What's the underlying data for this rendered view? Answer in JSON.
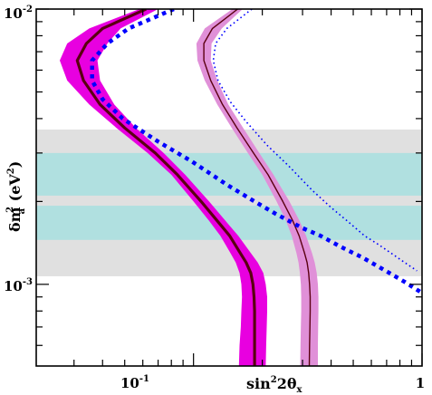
{
  "chart_data": {
    "type": "line",
    "title": "",
    "x_scale": "log",
    "y_scale": "log",
    "xlim": [
      0.0205,
      1.0
    ],
    "ylim": [
      0.000505,
      0.01
    ],
    "x_ticks": [
      {
        "value": 0.1,
        "base": "10",
        "exp": "-1"
      },
      {
        "value": 1,
        "base": "1",
        "exp": ""
      }
    ],
    "y_ticks": [
      {
        "value": 0.01,
        "base": "10",
        "exp": "-2"
      },
      {
        "value": 0.001,
        "base": "10",
        "exp": "-3"
      }
    ],
    "xlabel": {
      "main": "sin",
      "sup": "2",
      "mid": "2θ",
      "sub": "x"
    },
    "ylabel": {
      "main": "δm",
      "sub": "a",
      "sup": "2",
      "unit_open": " (eV",
      "unit_sup": "2",
      "unit_close": ")"
    },
    "bands": [
      {
        "name": "gray-outer",
        "y_range": [
          0.00107,
          0.00365
        ],
        "color": "#e0e0e0"
      },
      {
        "name": "cyan-upper",
        "y_range": [
          0.0021,
          0.003
        ],
        "color": "#b0e0e0"
      },
      {
        "name": "cyan-lower",
        "y_range": [
          0.00145,
          0.00193
        ],
        "color": "#b0e0e0"
      }
    ],
    "series": [
      {
        "id": "magenta-band",
        "style": "band",
        "color": "#e800e0",
        "opacity": 1,
        "y": [
          0.01,
          0.0085,
          0.0075,
          0.0065,
          0.0055,
          0.0045,
          0.0037,
          0.003,
          0.0025,
          0.002,
          0.0017,
          0.0015,
          0.0013,
          0.0012,
          0.0011,
          0.001,
          0.0009,
          0.0008,
          0.0007,
          0.0006,
          0.000505
        ],
        "x_left": [
          0.058,
          0.035,
          0.028,
          0.026,
          0.028,
          0.035,
          0.046,
          0.063,
          0.08,
          0.1,
          0.117,
          0.131,
          0.145,
          0.153,
          0.159,
          0.162,
          0.163,
          0.162,
          0.161,
          0.159,
          0.158
        ],
        "x_right": [
          0.07,
          0.048,
          0.042,
          0.038,
          0.039,
          0.045,
          0.056,
          0.074,
          0.092,
          0.117,
          0.138,
          0.157,
          0.178,
          0.191,
          0.202,
          0.207,
          0.21,
          0.21,
          0.209,
          0.208,
          0.207
        ]
      },
      {
        "id": "pink-band",
        "style": "band",
        "color": "#e090d8",
        "opacity": 1,
        "y": [
          0.01,
          0.0085,
          0.0075,
          0.0065,
          0.0055,
          0.0045,
          0.0037,
          0.003,
          0.0025,
          0.002,
          0.0017,
          0.0015,
          0.0013,
          0.0012,
          0.0011,
          0.001,
          0.0009,
          0.0008,
          0.0007,
          0.0006,
          0.000505
        ],
        "x_left": [
          0.148,
          0.112,
          0.103,
          0.104,
          0.112,
          0.127,
          0.147,
          0.173,
          0.2,
          0.231,
          0.254,
          0.269,
          0.282,
          0.288,
          0.292,
          0.295,
          0.296,
          0.296,
          0.295,
          0.294,
          0.293
        ],
        "x_right": [
          0.164,
          0.133,
          0.12,
          0.119,
          0.127,
          0.142,
          0.165,
          0.194,
          0.224,
          0.263,
          0.291,
          0.311,
          0.33,
          0.339,
          0.346,
          0.35,
          0.352,
          0.352,
          0.351,
          0.35,
          0.35
        ]
      },
      {
        "id": "dark-thick-line",
        "style": "solid",
        "color": "#5a0010",
        "width": 3.2,
        "x": [
          0.062,
          0.04,
          0.034,
          0.031,
          0.033,
          0.039,
          0.05,
          0.068,
          0.085,
          0.108,
          0.127,
          0.144,
          0.16,
          0.17,
          0.178,
          0.182,
          0.184,
          0.185,
          0.185,
          0.185,
          0.185
        ],
        "y": [
          0.01,
          0.0085,
          0.0075,
          0.0065,
          0.0055,
          0.0045,
          0.0037,
          0.003,
          0.0025,
          0.002,
          0.0017,
          0.0015,
          0.0013,
          0.0012,
          0.0011,
          0.001,
          0.0009,
          0.0008,
          0.0007,
          0.0006,
          0.000505
        ]
      },
      {
        "id": "dark-thin-line",
        "style": "solid",
        "color": "#5a0010",
        "width": 1.4,
        "x": [
          0.156,
          0.121,
          0.111,
          0.111,
          0.119,
          0.134,
          0.155,
          0.183,
          0.212,
          0.246,
          0.272,
          0.29,
          0.306,
          0.314,
          0.319,
          0.322,
          0.324,
          0.324,
          0.323,
          0.322,
          0.321
        ],
        "y": [
          0.01,
          0.0085,
          0.0075,
          0.0065,
          0.0055,
          0.0045,
          0.0037,
          0.003,
          0.0025,
          0.002,
          0.0017,
          0.0015,
          0.0013,
          0.0012,
          0.0011,
          0.001,
          0.0009,
          0.0008,
          0.0007,
          0.0006,
          0.000505
        ]
      },
      {
        "id": "blue-thick-dotted",
        "style": "dotted",
        "color": "#0000ff",
        "width": 4.5,
        "x": [
          0.082,
          0.052,
          0.042,
          0.036,
          0.036,
          0.04,
          0.049,
          0.07,
          0.098,
          0.14,
          0.185,
          0.23,
          0.3,
          0.36,
          0.44,
          0.55,
          0.68,
          0.84,
          1.0
        ],
        "y": [
          0.01,
          0.0085,
          0.0075,
          0.0065,
          0.0055,
          0.0047,
          0.004,
          0.0033,
          0.0028,
          0.0023,
          0.002,
          0.0018,
          0.0016,
          0.0015,
          0.00137,
          0.00125,
          0.00113,
          0.00102,
          0.00093
        ]
      },
      {
        "id": "blue-thin-dotted",
        "style": "dotted",
        "color": "#0000ff",
        "width": 1.6,
        "x": [
          0.18,
          0.14,
          0.125,
          0.122,
          0.128,
          0.145,
          0.17,
          0.21,
          0.26,
          0.33,
          0.4,
          0.47,
          0.56,
          0.64,
          0.73,
          0.84,
          0.95
        ],
        "y": [
          0.01,
          0.0085,
          0.0075,
          0.0065,
          0.0055,
          0.0046,
          0.0039,
          0.0032,
          0.0027,
          0.0022,
          0.0019,
          0.0017,
          0.0015,
          0.0014,
          0.0013,
          0.0012,
          0.00112
        ]
      }
    ]
  }
}
